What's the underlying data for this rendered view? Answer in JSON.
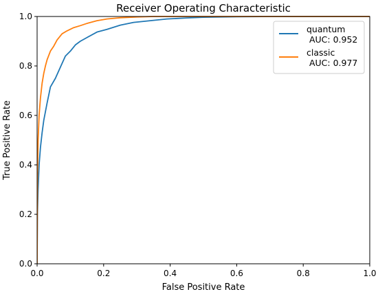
{
  "chart_data": {
    "type": "line",
    "title": "Receiver Operating Characteristic",
    "xlabel": "False Positive Rate",
    "ylabel": "True Positive Rate",
    "xlim": [
      0,
      1
    ],
    "ylim": [
      0,
      1
    ],
    "xticks": [
      "0.0",
      "0.2",
      "0.4",
      "0.6",
      "0.8",
      "1.0"
    ],
    "yticks": [
      "0.0",
      "0.2",
      "0.4",
      "0.6",
      "0.8",
      "1.0"
    ],
    "grid": false,
    "legend_position": "top-right",
    "series": [
      {
        "name": "quantum",
        "label_line2": " AUC: 0.952",
        "color": "#1f77b4",
        "x": [
          0,
          0.001,
          0.003,
          0.006,
          0.01,
          0.015,
          0.02,
          0.03,
          0.04,
          0.055,
          0.07,
          0.085,
          0.1,
          0.115,
          0.13,
          0.15,
          0.18,
          0.21,
          0.25,
          0.29,
          0.34,
          0.39,
          0.45,
          0.5,
          0.6,
          0.7,
          0.8,
          0.9,
          1.0
        ],
        "y": [
          0,
          0.2,
          0.3,
          0.4,
          0.47,
          0.53,
          0.58,
          0.65,
          0.715,
          0.75,
          0.795,
          0.84,
          0.86,
          0.885,
          0.9,
          0.915,
          0.937,
          0.948,
          0.965,
          0.976,
          0.983,
          0.99,
          0.994,
          0.997,
          0.999,
          1.0,
          1.0,
          1.0,
          1.0
        ]
      },
      {
        "name": "classic",
        "label_line2": " AUC: 0.977",
        "color": "#ff7f0e",
        "x": [
          0,
          0.001,
          0.003,
          0.006,
          0.01,
          0.015,
          0.02,
          0.025,
          0.03,
          0.04,
          0.05,
          0.06,
          0.075,
          0.09,
          0.11,
          0.13,
          0.15,
          0.18,
          0.21,
          0.25,
          0.3,
          0.35,
          0.4,
          0.5,
          0.6,
          0.7,
          0.8,
          0.9,
          1.0
        ],
        "y": [
          0,
          0.35,
          0.5,
          0.6,
          0.67,
          0.73,
          0.77,
          0.8,
          0.825,
          0.86,
          0.88,
          0.905,
          0.93,
          0.942,
          0.955,
          0.963,
          0.972,
          0.983,
          0.99,
          0.995,
          0.998,
          1.0,
          1.0,
          1.0,
          1.0,
          1.0,
          1.0,
          1.0,
          1.0
        ]
      }
    ]
  }
}
